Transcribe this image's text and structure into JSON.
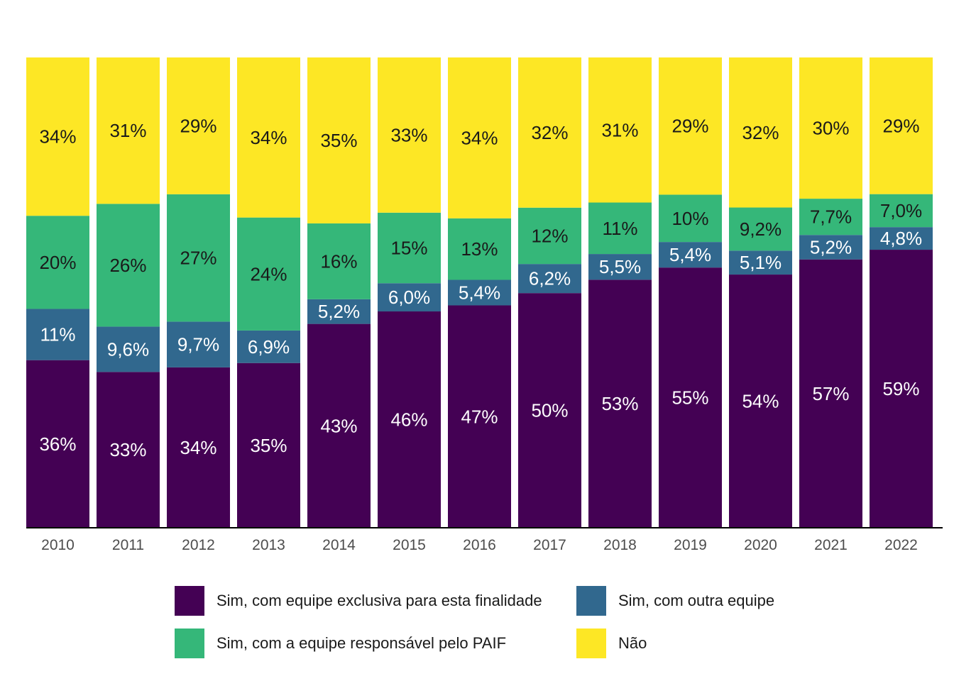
{
  "chart_data": {
    "type": "bar",
    "stacked": true,
    "normalized": true,
    "categories": [
      "2010",
      "2011",
      "2012",
      "2013",
      "2014",
      "2015",
      "2016",
      "2017",
      "2018",
      "2019",
      "2020",
      "2021",
      "2022"
    ],
    "series": [
      {
        "name": "Sim, com equipe exclusiva para esta finalidade",
        "color": "#440154",
        "values": [
          0.36,
          0.33,
          0.34,
          0.35,
          0.43,
          0.46,
          0.47,
          0.5,
          0.53,
          0.55,
          0.54,
          0.57,
          0.59
        ],
        "labels": [
          "36%",
          "33%",
          "34%",
          "35%",
          "43%",
          "46%",
          "47%",
          "50%",
          "53%",
          "55%",
          "54%",
          "57%",
          "59%"
        ]
      },
      {
        "name": "Sim, com outra equipe",
        "color": "#31688E",
        "values": [
          0.11,
          0.096,
          0.097,
          0.069,
          0.052,
          0.06,
          0.054,
          0.062,
          0.055,
          0.054,
          0.051,
          0.052,
          0.048
        ],
        "labels": [
          "11%",
          "9,6%",
          "9,7%",
          "6,9%",
          "5,2%",
          "6,0%",
          "5,4%",
          "6,2%",
          "5,5%",
          "5,4%",
          "5,1%",
          "5,2%",
          "4,8%"
        ]
      },
      {
        "name": "Sim, com a equipe responsável pelo PAIF",
        "color": "#35B779",
        "values": [
          0.2,
          0.26,
          0.27,
          0.24,
          0.16,
          0.15,
          0.13,
          0.12,
          0.11,
          0.1,
          0.092,
          0.077,
          0.07
        ],
        "labels": [
          "20%",
          "26%",
          "27%",
          "24%",
          "16%",
          "15%",
          "13%",
          "12%",
          "11%",
          "10%",
          "9,2%",
          "7,7%",
          "7,0%"
        ]
      },
      {
        "name": "Não",
        "color": "#FDE725",
        "values": [
          0.34,
          0.31,
          0.29,
          0.34,
          0.35,
          0.33,
          0.34,
          0.32,
          0.31,
          0.29,
          0.32,
          0.3,
          0.29
        ],
        "labels": [
          "34%",
          "31%",
          "29%",
          "34%",
          "35%",
          "33%",
          "34%",
          "32%",
          "31%",
          "29%",
          "32%",
          "30%",
          "29%"
        ]
      }
    ],
    "label_colors": [
      "#ffffff",
      "#ffffff",
      "#1a1a1a",
      "#1a1a1a"
    ],
    "ylim": [
      0,
      1
    ],
    "grid": false,
    "legend_position": "bottom"
  },
  "legend": {
    "items": [
      {
        "label": "Sim, com equipe exclusiva para esta finalidade",
        "color": "#440154"
      },
      {
        "label": "Sim, com outra equipe",
        "color": "#31688E"
      },
      {
        "label": "Sim, com a equipe responsável pelo PAIF",
        "color": "#35B779"
      },
      {
        "label": "Não",
        "color": "#FDE725"
      }
    ]
  }
}
